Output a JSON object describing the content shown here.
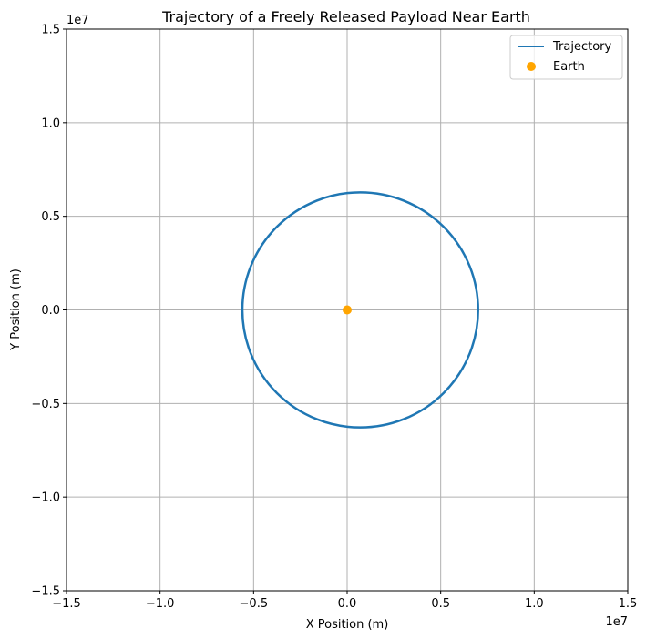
{
  "chart_data": {
    "type": "line",
    "title": "Trajectory of a Freely Released Payload Near Earth",
    "xlabel": "X Position (m)",
    "ylabel": "Y Position (m)",
    "x_offset_label": "1e7",
    "y_offset_label": "1e7",
    "xlim": [
      -15000000,
      15000000
    ],
    "ylim": [
      -15000000,
      15000000
    ],
    "xticks": [
      -15000000,
      -10000000,
      -5000000,
      0,
      5000000,
      10000000,
      15000000
    ],
    "yticks": [
      -15000000,
      -10000000,
      -5000000,
      0,
      5000000,
      10000000,
      15000000
    ],
    "xtick_labels": [
      "−1.5",
      "−1.0",
      "−0.5",
      "0.0",
      "0.5",
      "1.0",
      "1.5"
    ],
    "ytick_labels": [
      "−1.5",
      "−1.0",
      "−0.5",
      "0.0",
      "0.5",
      "1.0",
      "1.5"
    ],
    "grid": true,
    "legend_position": "top-right",
    "series": [
      {
        "name": "Trajectory",
        "kind": "line",
        "color": "#1f77b4",
        "shape": "ellipse",
        "center": [
          700000,
          0
        ],
        "semi_axis_x": 6300000,
        "semi_axis_y": 6280000
      },
      {
        "name": "Earth",
        "kind": "scatter",
        "color": "#ffa500",
        "points": [
          [
            0,
            0
          ]
        ]
      }
    ]
  }
}
